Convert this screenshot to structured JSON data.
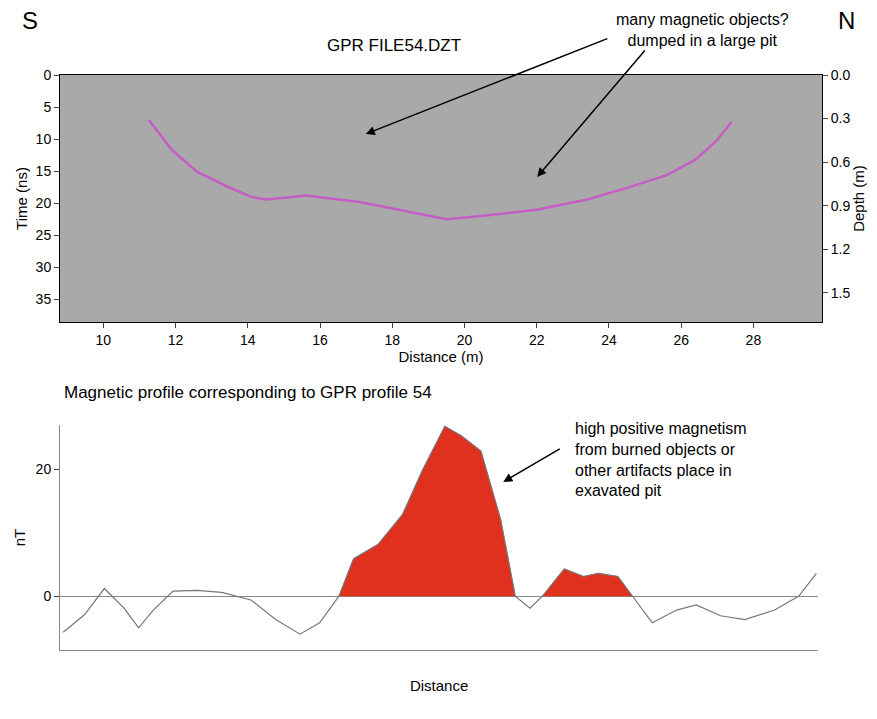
{
  "chart_data": [
    {
      "type": "line",
      "title": "GPR FILE54.DZT",
      "compass": [
        "S",
        "N"
      ],
      "annotations": [
        "many magnetic objects? dumped in a large pit"
      ],
      "x_label": "Distance (m)",
      "y_label": "Time (ns)",
      "y2_label": "Depth (m)",
      "x": [
        11.26,
        11.9,
        12.6,
        13.4,
        14.1,
        14.5,
        15.1,
        15.6,
        17.1,
        18.4,
        19.5,
        20.6,
        22.0,
        23.4,
        24.5,
        25.6,
        26.4,
        27.0,
        27.4
      ],
      "series": [
        {
          "color": "#c45ec4",
          "values": [
            7.0,
            11.7,
            15.1,
            17.3,
            19.0,
            19.4,
            19.1,
            18.8,
            19.8,
            21.3,
            22.5,
            21.9,
            21.0,
            19.4,
            17.6,
            15.6,
            13.2,
            10.1,
            7.3
          ]
        }
      ],
      "xlim": [
        8.8,
        29.9
      ],
      "xticks": [
        10,
        12,
        14,
        16,
        18,
        20,
        22,
        24,
        26,
        28
      ],
      "ylim": [
        38.5,
        0
      ],
      "yticks": [
        0,
        5,
        10,
        15,
        20,
        25,
        30,
        35
      ],
      "y2lim": [
        1.7,
        0
      ],
      "y2ticks": [
        {
          "value": 0,
          "label": "0.0"
        },
        0.3,
        0.6,
        0.9,
        1.2,
        1.5
      ],
      "grid": false
    },
    {
      "type": "area",
      "title": "Magnetic profile corresponding to GPR profile 54",
      "annotations": [
        "high positive magnetism from burned objects or other artifacts place in exavated pit"
      ],
      "x_label": "Distance",
      "y_label": "nT",
      "x": [
        8.69,
        9.29,
        9.84,
        10.39,
        10.8,
        11.21,
        11.76,
        12.44,
        13.12,
        13.94,
        14.63,
        15.31,
        15.86,
        16.4,
        16.81,
        17.5,
        18.18,
        18.73,
        19.36,
        19.82,
        20.37,
        20.92,
        21.33,
        21.74,
        22.09,
        22.7,
        23.24,
        23.65,
        24.2,
        24.61,
        25.16,
        25.84,
        26.39,
        27.07,
        27.75,
        28.58,
        29.26,
        29.75
      ],
      "series": [
        {
          "type": "area",
          "color": "#e0301e",
          "x": [
            16.4,
            16.81,
            17.5,
            18.18,
            18.73,
            19.36,
            19.82,
            20.37,
            20.92,
            21.33
          ],
          "values": [
            0,
            5.9,
            8.2,
            12.9,
            19.8,
            26.8,
            25.3,
            22.9,
            12.1,
            0
          ]
        },
        {
          "type": "area",
          "color": "#e0301e",
          "x": [
            22.09,
            22.7,
            23.24,
            23.65,
            24.2,
            24.61
          ],
          "values": [
            0,
            4.3,
            3.1,
            3.6,
            3.1,
            0
          ]
        },
        {
          "type": "line",
          "color": "#777777",
          "values": [
            -5.7,
            -2.9,
            1.2,
            -1.9,
            -5.0,
            -2.2,
            0.8,
            0.9,
            0.6,
            -0.6,
            -3.7,
            -6.0,
            -4.2,
            0,
            5.9,
            8.2,
            12.9,
            19.8,
            26.8,
            25.3,
            22.9,
            12.1,
            0,
            -1.9,
            0,
            4.3,
            3.1,
            3.6,
            3.1,
            0,
            -4.2,
            -2.2,
            -1.4,
            -3.1,
            -3.7,
            -2.2,
            0,
            3.6
          ]
        }
      ],
      "xlim": [
        8.6,
        29.8
      ],
      "ylim": [
        -8.5,
        27
      ],
      "yticks": [
        0,
        20
      ],
      "tick_labels": "y",
      "grid": false
    }
  ]
}
